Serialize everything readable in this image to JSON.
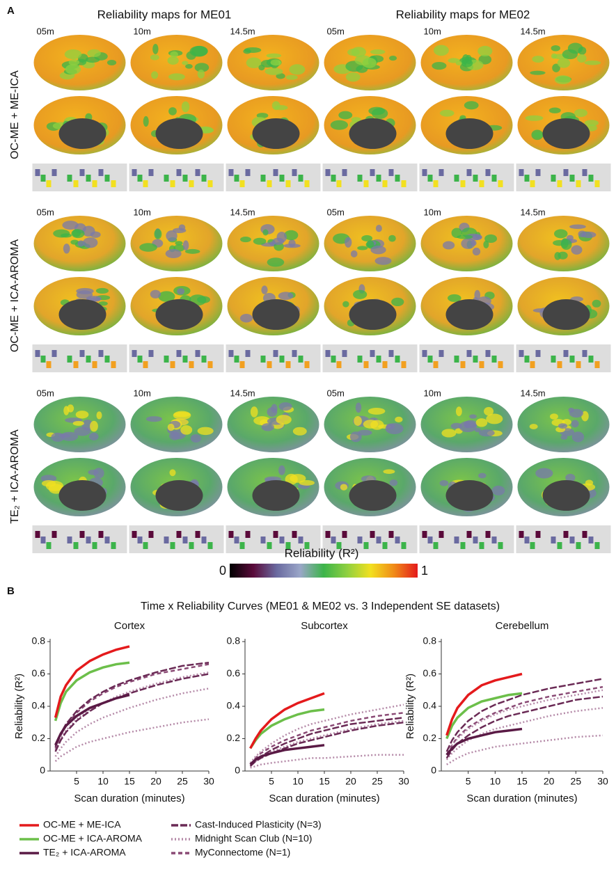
{
  "panel_a": {
    "label": "A",
    "titles": [
      "Reliability maps for ME01",
      "Reliability maps for ME02"
    ],
    "rows": [
      {
        "label": "OC-ME + ME-ICA",
        "time_labels": [
          "05m",
          "10m",
          "14.5m",
          "05m",
          "10m",
          "14.5m"
        ]
      },
      {
        "label": "OC-ME + ICA-AROMA",
        "time_labels": [
          "05m",
          "10m",
          "14.5m",
          "05m",
          "10m",
          "14.5m"
        ]
      },
      {
        "label": "TE₂ + ICA-AROMA",
        "time_labels": [
          "05m",
          "10m",
          "14.5m",
          "05m",
          "10m",
          "14.5m"
        ]
      }
    ],
    "colorbar": {
      "label": "Reliability (R²)",
      "ticks": [
        0,
        1
      ],
      "colors": [
        "#000000",
        "#5a0a3a",
        "#6a6aa0",
        "#9aa6c8",
        "#3cb44a",
        "#8fd040",
        "#f2e020",
        "#f08a18",
        "#e41a1c"
      ]
    }
  },
  "panel_b": {
    "label": "B",
    "title": "Time x Reliability Curves (ME01 & ME02 vs. 3 Independent SE datasets)"
  },
  "chart_data": [
    {
      "type": "line",
      "title": "Cortex",
      "ylabel": "Reliability (R²)",
      "xlabel": "Scan duration (minutes)",
      "xlim": [
        0,
        30
      ],
      "xticks": [
        5,
        10,
        15,
        20,
        25,
        30
      ],
      "ylim": [
        0,
        0.8
      ],
      "yticks": [
        0,
        0.2,
        0.4,
        0.6,
        0.8
      ],
      "x": [
        1,
        2,
        3,
        5,
        7.5,
        10,
        12.5,
        15,
        20,
        25,
        30
      ],
      "series": [
        {
          "name": "OC-ME + ME-ICA",
          "color": "#e41a1c",
          "dash": "solid",
          "values": [
            0.33,
            0.46,
            0.53,
            0.62,
            0.68,
            0.72,
            0.75,
            0.77,
            null,
            null,
            null
          ]
        },
        {
          "name": "OC-ME + ICA-AROMA",
          "color": "#6cbf4a",
          "dash": "solid",
          "values": [
            0.31,
            0.42,
            0.49,
            0.56,
            0.61,
            0.64,
            0.66,
            0.67,
            null,
            null,
            null
          ]
        },
        {
          "name": "TE₂ + ICA-AROMA",
          "color": "#5a1a45",
          "dash": "solid",
          "values": [
            0.16,
            0.23,
            0.28,
            0.34,
            0.39,
            0.42,
            0.45,
            0.47,
            null,
            null,
            null
          ]
        },
        {
          "name": "Cast-Induced Plasticity (N=3)",
          "color": "#6a2a55",
          "dash": "10 3",
          "values": [
            0.15,
            0.23,
            0.29,
            0.37,
            0.44,
            0.49,
            0.53,
            0.56,
            0.61,
            0.65,
            0.67
          ]
        },
        {
          "name": "Cast-Induced Plasticity (N=3)",
          "color": "#6a2a55",
          "dash": "10 3",
          "values": [
            0.12,
            0.19,
            0.24,
            0.31,
            0.37,
            0.42,
            0.45,
            0.48,
            0.53,
            0.57,
            0.6
          ]
        },
        {
          "name": "Midnight Scan Club (N=10)",
          "color": "#b58aa8",
          "dash": "2 3",
          "values": [
            0.13,
            0.2,
            0.25,
            0.32,
            0.38,
            0.42,
            0.46,
            0.49,
            0.54,
            0.58,
            0.61
          ]
        },
        {
          "name": "Midnight Scan Club (N=10)",
          "color": "#b58aa8",
          "dash": "2 3",
          "values": [
            0.09,
            0.14,
            0.18,
            0.24,
            0.29,
            0.33,
            0.36,
            0.39,
            0.44,
            0.48,
            0.51
          ]
        },
        {
          "name": "Midnight Scan Club (N=10)",
          "color": "#b58aa8",
          "dash": "2 3",
          "values": [
            0.06,
            0.09,
            0.11,
            0.15,
            0.18,
            0.2,
            0.22,
            0.24,
            0.27,
            0.3,
            0.32
          ]
        },
        {
          "name": "MyConnectome (N=1)",
          "color": "#8a4a75",
          "dash": "6 4",
          "values": [
            0.14,
            0.22,
            0.28,
            0.36,
            0.43,
            0.48,
            0.52,
            0.55,
            0.6,
            0.63,
            0.66
          ]
        }
      ]
    },
    {
      "type": "line",
      "title": "Subcortex",
      "xlabel": "Scan duration (minutes)",
      "xlim": [
        0,
        30
      ],
      "xticks": [
        5,
        10,
        15,
        20,
        25,
        30
      ],
      "ylim": [
        0,
        0.8
      ],
      "yticks": [
        0,
        0.2,
        0.4,
        0.6,
        0.8
      ],
      "x": [
        1,
        2,
        3,
        5,
        7.5,
        10,
        12.5,
        15,
        20,
        25,
        30
      ],
      "series": [
        {
          "name": "OC-ME + ME-ICA",
          "color": "#e41a1c",
          "dash": "solid",
          "values": [
            0.14,
            0.2,
            0.25,
            0.32,
            0.38,
            0.42,
            0.45,
            0.48,
            null,
            null,
            null
          ]
        },
        {
          "name": "OC-ME + ICA-AROMA",
          "color": "#6cbf4a",
          "dash": "solid",
          "values": [
            0.14,
            0.19,
            0.23,
            0.28,
            0.32,
            0.35,
            0.37,
            0.38,
            null,
            null,
            null
          ]
        },
        {
          "name": "TE₂ + ICA-AROMA",
          "color": "#5a1a45",
          "dash": "solid",
          "values": [
            0.04,
            0.07,
            0.09,
            0.11,
            0.13,
            0.14,
            0.15,
            0.16,
            null,
            null,
            null
          ]
        },
        {
          "name": "Cast-Induced Plasticity (N=3)",
          "color": "#6a2a55",
          "dash": "10 3",
          "values": [
            0.04,
            0.07,
            0.09,
            0.13,
            0.17,
            0.2,
            0.23,
            0.25,
            0.29,
            0.31,
            0.33
          ]
        },
        {
          "name": "Cast-Induced Plasticity (N=3)",
          "color": "#6a2a55",
          "dash": "10 3",
          "values": [
            0.03,
            0.06,
            0.08,
            0.11,
            0.14,
            0.17,
            0.19,
            0.21,
            0.25,
            0.28,
            0.3
          ]
        },
        {
          "name": "Midnight Scan Club (N=10)",
          "color": "#b58aa8",
          "dash": "2 3",
          "values": [
            0.05,
            0.09,
            0.12,
            0.17,
            0.22,
            0.26,
            0.29,
            0.31,
            0.35,
            0.38,
            0.41
          ]
        },
        {
          "name": "Midnight Scan Club (N=10)",
          "color": "#b58aa8",
          "dash": "2 3",
          "values": [
            0.03,
            0.06,
            0.08,
            0.12,
            0.15,
            0.18,
            0.2,
            0.22,
            0.26,
            0.29,
            0.31
          ]
        },
        {
          "name": "Midnight Scan Club (N=10)",
          "color": "#b58aa8",
          "dash": "2 3",
          "values": [
            0.02,
            0.03,
            0.04,
            0.05,
            0.06,
            0.07,
            0.08,
            0.08,
            0.09,
            0.1,
            0.1
          ]
        },
        {
          "name": "MyConnectome (N=1)",
          "color": "#8a4a75",
          "dash": "6 4",
          "values": [
            0.04,
            0.08,
            0.11,
            0.15,
            0.19,
            0.22,
            0.25,
            0.27,
            0.31,
            0.34,
            0.36
          ]
        }
      ]
    },
    {
      "type": "line",
      "title": "Cerebellum",
      "ylabel": "Reliability (R²)",
      "xlabel": "Scan duration (minutes)",
      "xlim": [
        0,
        30
      ],
      "xticks": [
        5,
        10,
        15,
        20,
        25,
        30
      ],
      "ylim": [
        0,
        0.8
      ],
      "yticks": [
        0,
        0.2,
        0.4,
        0.6,
        0.8
      ],
      "x": [
        1,
        2,
        3,
        5,
        7.5,
        10,
        12.5,
        15,
        20,
        25,
        30
      ],
      "series": [
        {
          "name": "OC-ME + ME-ICA",
          "color": "#e41a1c",
          "dash": "solid",
          "values": [
            0.22,
            0.32,
            0.39,
            0.47,
            0.53,
            0.56,
            0.58,
            0.6,
            null,
            null,
            null
          ]
        },
        {
          "name": "OC-ME + ICA-AROMA",
          "color": "#6cbf4a",
          "dash": "solid",
          "values": [
            0.2,
            0.28,
            0.33,
            0.39,
            0.43,
            0.45,
            0.47,
            0.48,
            null,
            null,
            null
          ]
        },
        {
          "name": "TE₂ + ICA-AROMA",
          "color": "#5a1a45",
          "dash": "solid",
          "values": [
            0.1,
            0.14,
            0.17,
            0.2,
            0.22,
            0.24,
            0.25,
            0.26,
            null,
            null,
            null
          ]
        },
        {
          "name": "Cast-Induced Plasticity (N=3)",
          "color": "#6a2a55",
          "dash": "10 3",
          "values": [
            0.12,
            0.19,
            0.24,
            0.31,
            0.37,
            0.41,
            0.44,
            0.47,
            0.51,
            0.54,
            0.57
          ]
        },
        {
          "name": "Cast-Induced Plasticity (N=3)",
          "color": "#6a2a55",
          "dash": "10 3",
          "values": [
            0.08,
            0.13,
            0.17,
            0.22,
            0.27,
            0.31,
            0.34,
            0.36,
            0.4,
            0.44,
            0.46
          ]
        },
        {
          "name": "Midnight Scan Club (N=10)",
          "color": "#b58aa8",
          "dash": "2 3",
          "values": [
            0.1,
            0.16,
            0.2,
            0.26,
            0.31,
            0.35,
            0.38,
            0.4,
            0.44,
            0.47,
            0.5
          ]
        },
        {
          "name": "Midnight Scan Club (N=10)",
          "color": "#b58aa8",
          "dash": "2 3",
          "values": [
            0.07,
            0.11,
            0.14,
            0.19,
            0.23,
            0.26,
            0.28,
            0.3,
            0.34,
            0.37,
            0.39
          ]
        },
        {
          "name": "Midnight Scan Club (N=10)",
          "color": "#b58aa8",
          "dash": "2 3",
          "values": [
            0.04,
            0.06,
            0.08,
            0.11,
            0.13,
            0.15,
            0.16,
            0.17,
            0.19,
            0.21,
            0.22
          ]
        },
        {
          "name": "MyConnectome (N=1)",
          "color": "#8a4a75",
          "dash": "6 4",
          "values": [
            0.1,
            0.16,
            0.21,
            0.27,
            0.32,
            0.36,
            0.39,
            0.42,
            0.46,
            0.49,
            0.52
          ]
        }
      ]
    }
  ]
}
